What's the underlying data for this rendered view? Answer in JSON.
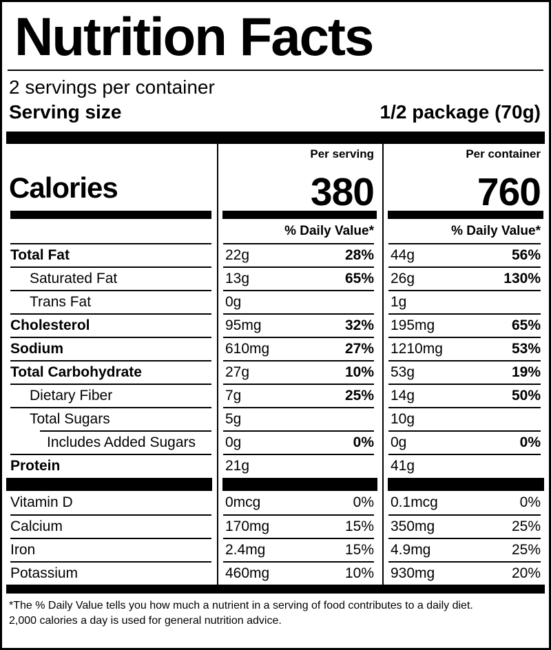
{
  "label": {
    "title": "Nutrition Facts",
    "servings_per_container": "2 servings per container",
    "serving_size": {
      "label": "Serving size",
      "value": "1/2 package (70g)"
    },
    "calories": {
      "label": "Calories",
      "per_serving": {
        "header": "Per serving",
        "value": "380"
      },
      "per_container": {
        "header": "Per container",
        "value": "760"
      }
    },
    "daily_value_header": "% Daily Value*",
    "nutrients": [
      {
        "name": "Total Fat",
        "serving_amount": "22g",
        "serving_dv": "28%",
        "container_amount": "44g",
        "container_dv": "56%"
      },
      {
        "name": "Saturated Fat",
        "serving_amount": "13g",
        "serving_dv": "65%",
        "container_amount": "26g",
        "container_dv": "130%"
      },
      {
        "name": "Trans Fat",
        "serving_amount": "0g",
        "serving_dv": "",
        "container_amount": "1g",
        "container_dv": ""
      },
      {
        "name": "Cholesterol",
        "serving_amount": "95mg",
        "serving_dv": "32%",
        "container_amount": "195mg",
        "container_dv": "65%"
      },
      {
        "name": "Sodium",
        "serving_amount": "610mg",
        "serving_dv": "27%",
        "container_amount": "1210mg",
        "container_dv": "53%"
      },
      {
        "name": "Total Carbohydrate",
        "serving_amount": "27g",
        "serving_dv": "10%",
        "container_amount": "53g",
        "container_dv": "19%"
      },
      {
        "name": "Dietary Fiber",
        "serving_amount": "7g",
        "serving_dv": "25%",
        "container_amount": "14g",
        "container_dv": "50%"
      },
      {
        "name": "Total Sugars",
        "serving_amount": "5g",
        "serving_dv": "",
        "container_amount": "10g",
        "container_dv": ""
      },
      {
        "name": "Includes Added Sugars",
        "serving_amount": "0g",
        "serving_dv": "0%",
        "container_amount": "0g",
        "container_dv": "0%"
      },
      {
        "name": "Protein",
        "serving_amount": "21g",
        "serving_dv": "",
        "container_amount": "41g",
        "container_dv": ""
      }
    ],
    "micronutrients": [
      {
        "name": "Vitamin D",
        "serving_amount": "0mcg",
        "serving_dv": "0%",
        "container_amount": "0.1mcg",
        "container_dv": "0%"
      },
      {
        "name": "Calcium",
        "serving_amount": "170mg",
        "serving_dv": "15%",
        "container_amount": "350mg",
        "container_dv": "25%"
      },
      {
        "name": "Iron",
        "serving_amount": "2.4mg",
        "serving_dv": "15%",
        "container_amount": "4.9mg",
        "container_dv": "25%"
      },
      {
        "name": "Potassium",
        "serving_amount": "460mg",
        "serving_dv": "10%",
        "container_amount": "930mg",
        "container_dv": "20%"
      }
    ],
    "footnote": {
      "line1": "*The % Daily Value tells you how much a nutrient in a serving of food contributes to a daily diet.",
      "line2": "2,000 calories a day is used for general nutrition advice."
    },
    "colors": {
      "ink": "#000000",
      "background": "#ffffff"
    }
  }
}
